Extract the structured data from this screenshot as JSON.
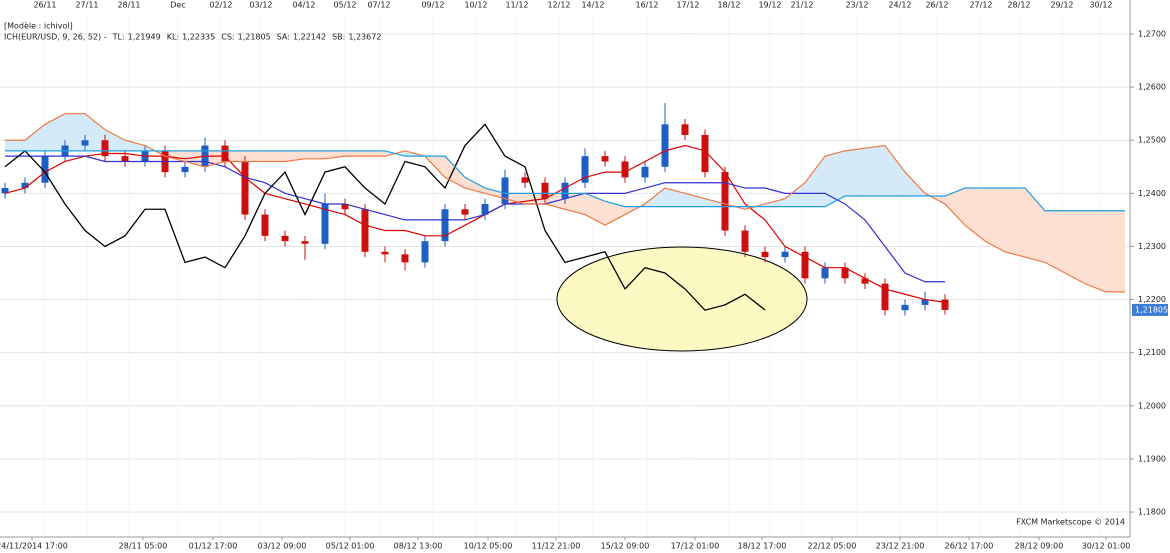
{
  "chart_data": {
    "type": "candlestick",
    "model_label": "[Modèle : ichivol]",
    "indicator_label": "ICH(EUR/USD, 9, 26, 52) -",
    "indicator_color": "#e00000",
    "watermark": "FXCM Marketscope © 2014",
    "grid": true,
    "xlim": [
      -0.25,
      56.25
    ],
    "ylim": [
      1.1753,
      1.2764
    ],
    "yticks": [
      {
        "value": 1.18,
        "label": "1,1800"
      },
      {
        "value": 1.19,
        "label": "1,1900"
      },
      {
        "value": 1.2,
        "label": "1,2000"
      },
      {
        "value": 1.21,
        "label": "1,2100"
      },
      {
        "value": 1.22,
        "label": "1,2200"
      },
      {
        "value": 1.23,
        "label": "1,2300"
      },
      {
        "value": 1.24,
        "label": "1,2400"
      },
      {
        "value": 1.25,
        "label": "1,2500"
      },
      {
        "value": 1.26,
        "label": "1,2600"
      },
      {
        "value": 1.27,
        "label": "1,2700"
      }
    ],
    "xticks_top": [
      {
        "value": 2.0,
        "label": "26/11"
      },
      {
        "value": 4.1,
        "label": "27/11"
      },
      {
        "value": 6.2,
        "label": "28/11"
      },
      {
        "value": 8.65,
        "label": "Dec"
      },
      {
        "value": 10.8,
        "label": "02/12"
      },
      {
        "value": 12.8,
        "label": "03/12"
      },
      {
        "value": 14.95,
        "label": "04/12"
      },
      {
        "value": 17.0,
        "label": "05/12"
      },
      {
        "value": 18.7,
        "label": "07/12"
      },
      {
        "value": 21.4,
        "label": "09/12"
      },
      {
        "value": 23.55,
        "label": "10/12"
      },
      {
        "value": 25.6,
        "label": "11/12"
      },
      {
        "value": 27.7,
        "label": "12/12"
      },
      {
        "value": 29.4,
        "label": "14/12"
      },
      {
        "value": 32.1,
        "label": "16/12"
      },
      {
        "value": 34.15,
        "label": "17/12"
      },
      {
        "value": 36.2,
        "label": "18/12"
      },
      {
        "value": 38.25,
        "label": "19/12"
      },
      {
        "value": 39.85,
        "label": "21/12"
      },
      {
        "value": 42.6,
        "label": "23/12"
      },
      {
        "value": 44.75,
        "label": "24/12"
      },
      {
        "value": 46.6,
        "label": "26/12"
      },
      {
        "value": 48.8,
        "label": "27/12"
      },
      {
        "value": 50.7,
        "label": "28/12"
      },
      {
        "value": 52.85,
        "label": "29/12"
      },
      {
        "value": 54.8,
        "label": "30/12"
      }
    ],
    "xticks": [
      {
        "value": 1.35,
        "label": "24/11/2014 17:00"
      },
      {
        "value": 6.9,
        "label": "28/11 05:00"
      },
      {
        "value": 10.4,
        "label": "01/12 17:00"
      },
      {
        "value": 13.85,
        "label": "03/12 09:00"
      },
      {
        "value": 17.25,
        "label": "05/12 01:00"
      },
      {
        "value": 20.65,
        "label": "08/12 13:00"
      },
      {
        "value": 24.15,
        "label": "10/12 05:00"
      },
      {
        "value": 27.55,
        "label": "11/12 21:00"
      },
      {
        "value": 31.0,
        "label": "15/12 09:00"
      },
      {
        "value": 34.5,
        "label": "17/12 01:00"
      },
      {
        "value": 37.85,
        "label": "18/12 17:00"
      },
      {
        "value": 41.35,
        "label": "22/12 05:00"
      },
      {
        "value": 44.75,
        "label": "23/12 21:00"
      },
      {
        "value": 48.2,
        "label": "26/12 17:00"
      },
      {
        "value": 51.7,
        "label": "28/12 09:00"
      },
      {
        "value": 55.05,
        "label": "30/12 01:00"
      }
    ],
    "candles": {
      "up_color": "#1f5fc4",
      "down_color": "#cc1010",
      "open": [
        1.24,
        1.241,
        1.242,
        1.247,
        1.249,
        1.25,
        1.247,
        1.246,
        1.248,
        1.244,
        1.245,
        1.249,
        1.246,
        1.236,
        1.232,
        1.231,
        1.2305,
        1.238,
        1.237,
        1.229,
        1.2285,
        1.227,
        1.231,
        1.237,
        1.236,
        1.238,
        1.243,
        1.242,
        1.239,
        1.242,
        1.247,
        1.246,
        1.243,
        1.245,
        1.253,
        1.251,
        1.244,
        1.233,
        1.229,
        1.228,
        1.229,
        1.224,
        1.226,
        1.224,
        1.223,
        1.218,
        1.219,
        1.22
      ],
      "high": [
        1.242,
        1.243,
        1.248,
        1.25,
        1.251,
        1.251,
        1.248,
        1.249,
        1.249,
        1.246,
        1.2505,
        1.25,
        1.247,
        1.237,
        1.233,
        1.232,
        1.24,
        1.239,
        1.238,
        1.23,
        1.2295,
        1.232,
        1.238,
        1.238,
        1.239,
        1.2445,
        1.244,
        1.243,
        1.243,
        1.2485,
        1.248,
        1.247,
        1.246,
        1.257,
        1.254,
        1.252,
        1.245,
        1.234,
        1.23,
        1.23,
        1.23,
        1.227,
        1.227,
        1.225,
        1.224,
        1.22,
        1.2215,
        1.221
      ],
      "low": [
        1.239,
        1.24,
        1.241,
        1.246,
        1.248,
        1.246,
        1.245,
        1.245,
        1.243,
        1.243,
        1.244,
        1.245,
        1.235,
        1.231,
        1.23,
        1.2275,
        1.2295,
        1.236,
        1.228,
        1.227,
        1.2255,
        1.226,
        1.23,
        1.235,
        1.235,
        1.237,
        1.241,
        1.238,
        1.238,
        1.241,
        1.245,
        1.242,
        1.242,
        1.244,
        1.25,
        1.243,
        1.232,
        1.228,
        1.227,
        1.227,
        1.223,
        1.223,
        1.223,
        1.222,
        1.217,
        1.217,
        1.218,
        1.2172
      ],
      "close": [
        1.241,
        1.242,
        1.247,
        1.249,
        1.25,
        1.247,
        1.246,
        1.248,
        1.244,
        1.245,
        1.249,
        1.246,
        1.236,
        1.232,
        1.231,
        1.2305,
        1.238,
        1.237,
        1.229,
        1.2285,
        1.227,
        1.231,
        1.237,
        1.236,
        1.238,
        1.243,
        1.242,
        1.239,
        1.242,
        1.247,
        1.246,
        1.243,
        1.245,
        1.253,
        1.251,
        1.244,
        1.233,
        1.229,
        1.228,
        1.229,
        1.224,
        1.226,
        1.224,
        1.223,
        1.218,
        1.219,
        1.22,
        1.21805
      ]
    },
    "last_price": 1.21805,
    "last_price_label": "1,21805",
    "last_price_color": "#3a7bd5",
    "cloud_colors": {
      "bullish": "#d4eaf8",
      "bearish": "#fde0d2"
    },
    "series": [
      {
        "name": "TL:",
        "value_label": "1,21949",
        "color": "#e00000",
        "values": [
          1.24,
          1.241,
          1.244,
          1.246,
          1.247,
          1.2475,
          1.2475,
          1.247,
          1.247,
          1.2465,
          1.247,
          1.247,
          1.243,
          1.24,
          1.239,
          1.238,
          1.237,
          1.236,
          1.234,
          1.233,
          1.233,
          1.232,
          1.232,
          1.234,
          1.236,
          1.238,
          1.2385,
          1.239,
          1.241,
          1.243,
          1.244,
          1.244,
          1.246,
          1.248,
          1.249,
          1.248,
          1.244,
          1.238,
          1.235,
          1.23,
          1.228,
          1.226,
          1.226,
          1.224,
          1.222,
          1.221,
          1.22,
          1.21949
        ]
      },
      {
        "name": "KL:",
        "value_label": "1,22335",
        "color": "#3030d0",
        "values": [
          1.247,
          1.247,
          1.247,
          1.247,
          1.247,
          1.246,
          1.246,
          1.246,
          1.246,
          1.246,
          1.246,
          1.245,
          1.243,
          1.242,
          1.24,
          1.239,
          1.238,
          1.238,
          1.237,
          1.236,
          1.235,
          1.235,
          1.235,
          1.235,
          1.236,
          1.238,
          1.238,
          1.238,
          1.239,
          1.24,
          1.24,
          1.24,
          1.241,
          1.242,
          1.242,
          1.242,
          1.242,
          1.241,
          1.241,
          1.24,
          1.24,
          1.24,
          1.238,
          1.235,
          1.23,
          1.225,
          1.22335,
          1.22335
        ]
      },
      {
        "name": "CS:",
        "value_label": "1,21805",
        "color": "#000000",
        "values": [
          1.245,
          1.248,
          1.244,
          1.238,
          1.233,
          1.23,
          1.232,
          1.237,
          1.237,
          1.227,
          1.228,
          1.226,
          1.232,
          1.24,
          1.244,
          1.236,
          1.244,
          1.245,
          1.241,
          1.238,
          1.246,
          1.245,
          1.241,
          1.249,
          1.253,
          1.247,
          1.245,
          1.233,
          1.227,
          1.228,
          1.229,
          1.222,
          1.226,
          1.225,
          1.222,
          1.218,
          1.219,
          1.221,
          1.21805
        ]
      },
      {
        "name": "SA:",
        "value_label": "1,22142",
        "color": "#f07845",
        "values": [
          1.25,
          1.25,
          1.253,
          1.255,
          1.255,
          1.252,
          1.25,
          1.249,
          1.247,
          1.246,
          1.245,
          1.246,
          1.246,
          1.246,
          1.246,
          1.2465,
          1.2465,
          1.247,
          1.247,
          1.247,
          1.248,
          1.247,
          1.243,
          1.241,
          1.24,
          1.239,
          1.238,
          1.238,
          1.237,
          1.236,
          1.234,
          1.236,
          1.238,
          1.241,
          1.24,
          1.239,
          1.238,
          1.237,
          1.238,
          1.239,
          1.242,
          1.247,
          1.248,
          1.2485,
          1.249,
          1.244,
          1.24,
          1.238,
          1.234,
          1.231,
          1.229,
          1.228,
          1.227,
          1.225,
          1.223,
          1.2215,
          1.22142
        ]
      },
      {
        "name": "SB:",
        "value_label": "1,23672",
        "color": "#1e9ee0",
        "values": [
          1.248,
          1.248,
          1.248,
          1.248,
          1.248,
          1.248,
          1.248,
          1.248,
          1.248,
          1.248,
          1.248,
          1.248,
          1.248,
          1.248,
          1.248,
          1.248,
          1.248,
          1.248,
          1.248,
          1.248,
          1.247,
          1.247,
          1.247,
          1.243,
          1.241,
          1.24,
          1.24,
          1.24,
          1.24,
          1.24,
          1.2385,
          1.2375,
          1.2375,
          1.2375,
          1.2375,
          1.2375,
          1.2375,
          1.2375,
          1.2375,
          1.2375,
          1.2375,
          1.2375,
          1.2395,
          1.2395,
          1.2395,
          1.2395,
          1.2395,
          1.2395,
          1.241,
          1.241,
          1.241,
          1.241,
          1.23672,
          1.23672,
          1.23672,
          1.23672,
          1.23672
        ]
      }
    ]
  }
}
